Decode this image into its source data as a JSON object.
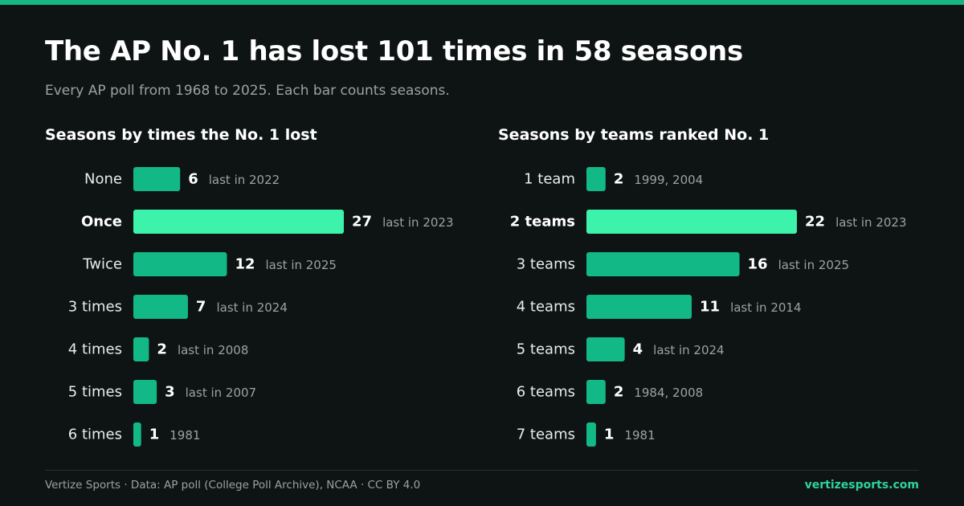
{
  "header": {
    "title": "The AP No. 1 has lost 101 times in 58 seasons",
    "subtitle": "Every AP poll from 1968 to 2025. Each bar counts seasons."
  },
  "colors": {
    "bar": "#12b886",
    "bar_highlight": "#3df2ab",
    "label": "#e8ecea",
    "note": "#9aa3a1",
    "brand": "#2fd39b"
  },
  "chart_data": [
    {
      "type": "bar",
      "orientation": "horizontal",
      "title": "Seasons by times the No. 1 lost",
      "categories": [
        "None",
        "Once",
        "Twice",
        "3 times",
        "4 times",
        "5 times",
        "6 times"
      ],
      "values": [
        6,
        27,
        12,
        7,
        2,
        3,
        1
      ],
      "notes": [
        "last in 2022",
        "last in 2023",
        "last in 2025",
        "last in 2024",
        "last in 2008",
        "last in 2007",
        "1981"
      ],
      "highlight_index": 1,
      "xlim": [
        0,
        27
      ]
    },
    {
      "type": "bar",
      "orientation": "horizontal",
      "title": "Seasons by teams ranked No. 1",
      "categories": [
        "1 team",
        "2 teams",
        "3 teams",
        "4 teams",
        "5 teams",
        "6 teams",
        "7 teams"
      ],
      "values": [
        2,
        22,
        16,
        11,
        4,
        2,
        1
      ],
      "notes": [
        "1999, 2004",
        "last in 2023",
        "last in 2025",
        "last in 2014",
        "last in 2024",
        "1984, 2008",
        "1981"
      ],
      "highlight_index": 1,
      "xlim": [
        0,
        22
      ]
    }
  ],
  "footer": {
    "source": "Vertize Sports · Data: AP poll (College Poll Archive), NCAA · CC BY 4.0",
    "brand": "vertizesports.com"
  }
}
